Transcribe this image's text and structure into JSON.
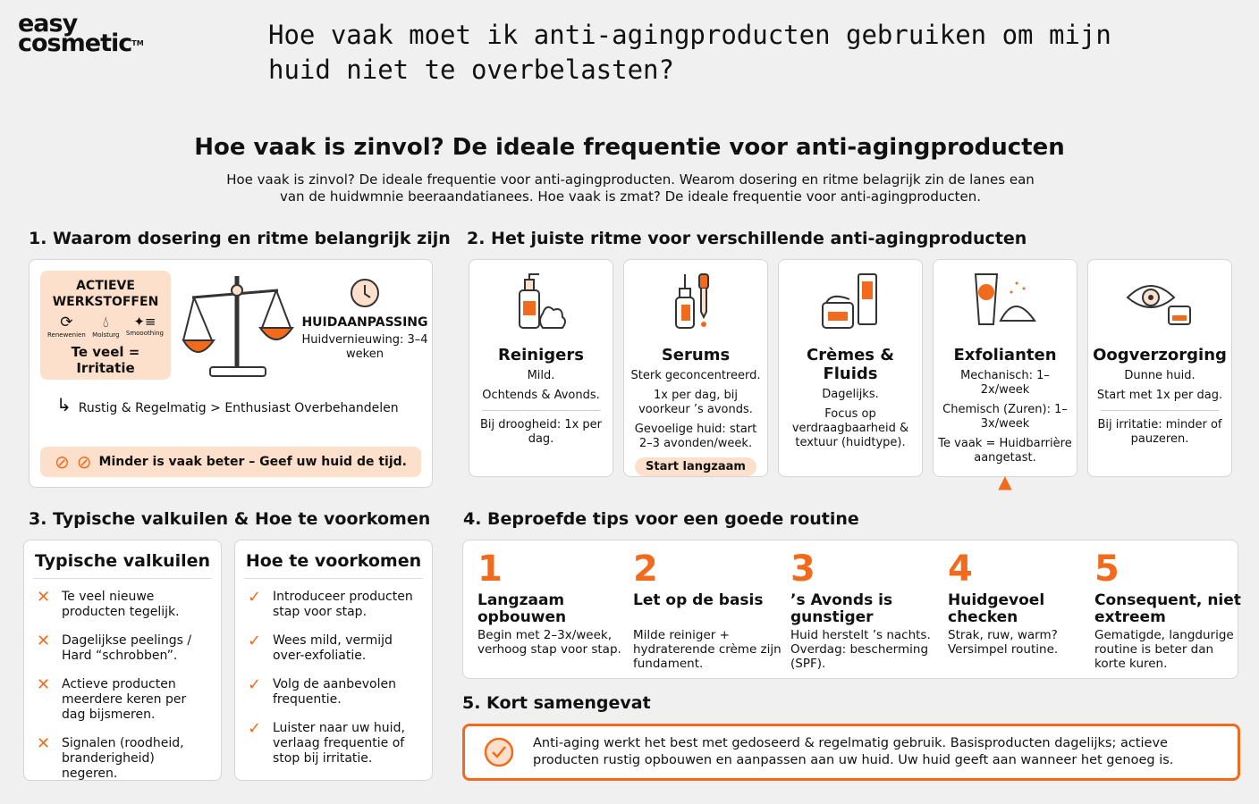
{
  "logo": {
    "line1": "easy",
    "line2": "cosmetic",
    "tm": "TM"
  },
  "question": "Hoe vaak moet ik anti-agingproducten gebruiken om mijn huid niet te overbelasten?",
  "heading": "Hoe vaak is zinvol? De ideale frequentie voor anti-agingproducten",
  "intro": "Hoe vaak is zinvol? De ideale frequentie voor anti-agingproducten. Wearom dosering en ritme belagrijk zin de lanes ean van de huidwmnie beeraandatianees. Hoe vaak is zmat? De ideale frequentie voor anti-agingproducten.",
  "s1": {
    "title": "1. Waarom dosering en ritme belangrijk zijn",
    "active_title": "ACTIEVE WERKSTOFFEN",
    "icons": [
      "Renewenien",
      "Molsturg",
      "Smooothing"
    ],
    "warning": "Te veel = Irritatie",
    "adapt_title": "HUIDAANPASSING",
    "adapt_text": "Huidvernieuwing: 3–4 weken",
    "arrow_text": "Rustig & Regelmatig > Enthusiast Overbehandelen",
    "banner": "Minder is vaak beter – Geef uw huid de tijd."
  },
  "s2": {
    "title": "2. Het juiste ritme voor verschillende anti-agingproducten",
    "products": [
      {
        "name": "Reinigers",
        "lines": [
          "Mild.",
          "Ochtends & Avonds."
        ],
        "extra": [
          "Bij droogheid: 1x per dag."
        ]
      },
      {
        "name": "Serums",
        "lines": [
          "Sterk geconcentreerd.",
          "1x per dag, bij voorkeur ’s avonds.",
          "Gevoelige huid: start 2–3 avonden/week."
        ],
        "badge": "Start langzaam"
      },
      {
        "name": "Crèmes & Fluids",
        "lines": [
          "Dagelijks.",
          "Focus op verdraagbaarheid & textuur (huidtype)."
        ]
      },
      {
        "name": "Exfolianten",
        "lines": [
          "Mechanisch: 1–2x/week",
          "Chemisch (Zuren): 1–3x/week",
          "Te vaak = Huidbarrière aangetast."
        ]
      },
      {
        "name": "Oogverzorging",
        "lines": [
          "Dunne huid.",
          "Start met 1x per dag."
        ],
        "extra": [
          "Bij irritatie: minder of pauzeren."
        ]
      }
    ]
  },
  "s3": {
    "title": "3. Typische valkuilen & Hoe te voorkomen",
    "pitfalls_title": "Typische valkuilen",
    "pitfalls": [
      "Te veel nieuwe producten tegelijk.",
      "Dagelijkse peelings / Hard “schrobben”.",
      "Actieve producten meerdere keren per dag bijsmeren.",
      "Signalen (roodheid, branderigheid) negeren."
    ],
    "prevent_title": "Hoe te voorkomen",
    "prevent": [
      "Introduceer producten stap voor stap.",
      "Wees mild, vermijd over-exfoliatie.",
      "Volg de aanbevolen frequentie.",
      "Luister naar uw huid, verlaag frequentie of stop bij irritatie."
    ]
  },
  "s4": {
    "title": "4. Beproefde tips voor een goede routine",
    "tips": [
      {
        "n": "1",
        "title": "Langzaam opbouwen",
        "text": "Begin met 2–3x/week, verhoog stap voor stap."
      },
      {
        "n": "2",
        "title": "Let op de basis",
        "text": "Milde reiniger + hydraterende crème zijn fundament."
      },
      {
        "n": "3",
        "title": "’s Avonds is gunstiger",
        "text": "Huid herstelt ’s nachts. Overdag: bescherming (SPF)."
      },
      {
        "n": "4",
        "title": "Huidgevoel checken",
        "text": "Strak, ruw, warm? Versimpel routine."
      },
      {
        "n": "5",
        "title": "Consequent, niet extreem",
        "text": "Gematigde, langdurige routine is beter dan korte kuren."
      }
    ]
  },
  "s5": {
    "title": "5. Kort samengevat",
    "text": "Anti-aging werkt het best met gedoseerd & regelmatig gebruik. Basisproducten dagelijks; actieve producten rustig opbouwen en aanpassen aan uw huid. Uw huid geeft aan wanneer het genoeg is."
  },
  "colors": {
    "accent": "#f26b1d",
    "peach": "#fde0cc",
    "background": "#f0f0f0"
  }
}
